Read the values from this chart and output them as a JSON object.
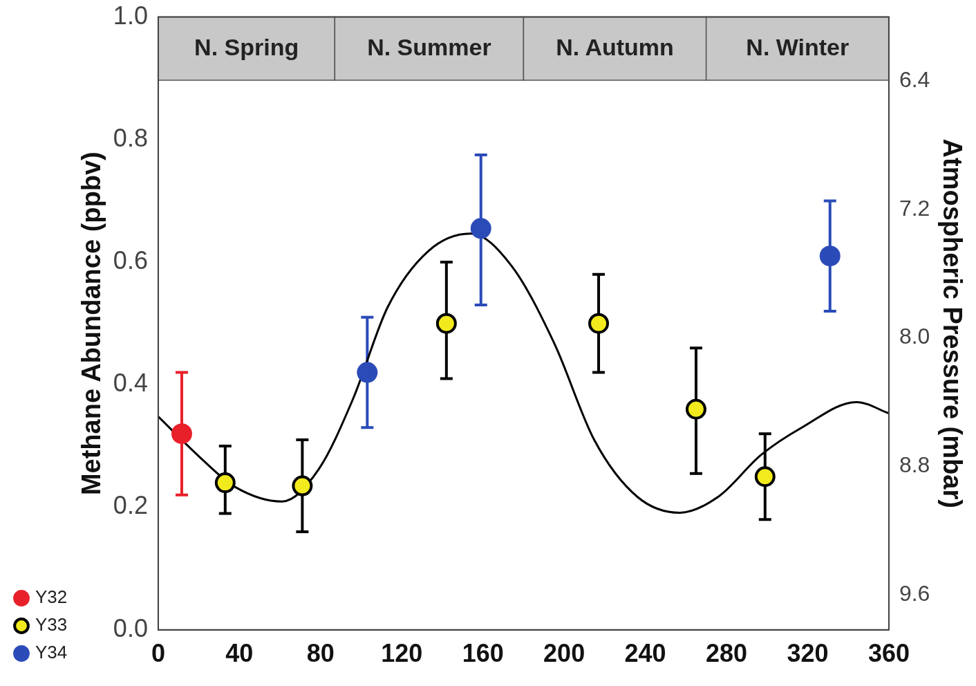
{
  "chart_data": {
    "type": "scatter",
    "ylabel": "Methane Abundance (ppbv)",
    "y2label": "Atmospheric Pressure (mbar)",
    "xlim": [
      0,
      360
    ],
    "xticks": [
      0,
      40,
      80,
      120,
      160,
      200,
      240,
      280,
      320,
      360
    ],
    "ylim": [
      0,
      1.0
    ],
    "yticks": [
      {
        "value": 0,
        "label": "0.0"
      },
      0.2,
      0.4,
      0.6,
      0.8,
      {
        "value": 1,
        "label": "1.0"
      }
    ],
    "y2lim": [
      9.82,
      6.0
    ],
    "y2ticks": [
      6.4,
      7.2,
      {
        "value": 8.0,
        "label": "8.0"
      },
      8.8,
      9.6
    ],
    "grid": false,
    "legend": "bottom left",
    "marker": "circle",
    "bands": [
      {
        "axis": "x",
        "from": 0,
        "to": 87,
        "label": "N. Spring",
        "color": "#c8c8c8"
      },
      {
        "axis": "x",
        "from": 87,
        "to": 180,
        "label": "N. Summer",
        "color": "#c8c8c8"
      },
      {
        "axis": "x",
        "from": 180,
        "to": 270,
        "label": "N. Autumn",
        "color": "#c8c8c8"
      },
      {
        "axis": "x",
        "from": 270,
        "to": 360,
        "label": "N. Winter",
        "color": "#c8c8c8"
      }
    ],
    "series": [
      {
        "name": "Y32",
        "color": "#e8202a",
        "x": [
          11.6
        ],
        "values": [
          0.32
        ],
        "errors": [
          [
            0.22,
            0.42
          ]
        ]
      },
      {
        "name": "Y33",
        "color": "#f2ea1c",
        "x": [
          33,
          71,
          142,
          217,
          265,
          299
        ],
        "values": [
          0.24,
          0.235,
          0.5,
          0.5,
          0.36,
          0.25
        ],
        "errors": [
          [
            0.19,
            0.3
          ],
          [
            0.16,
            0.31
          ],
          [
            0.41,
            0.6
          ],
          [
            0.42,
            0.58
          ],
          [
            0.255,
            0.46
          ],
          [
            0.18,
            0.32
          ]
        ]
      },
      {
        "name": "Y34",
        "color": "#2b4bb8",
        "x": [
          103,
          159,
          331
        ],
        "values": [
          0.42,
          0.655,
          0.61
        ],
        "errors": [
          [
            0.33,
            0.51
          ],
          [
            0.53,
            0.775
          ],
          [
            0.52,
            0.7
          ]
        ]
      },
      {
        "type": "line",
        "axis": "y2",
        "color": "#000000",
        "marker": "none",
        "x": [
          0,
          21,
          38,
          61,
          79,
          96,
          113,
          133,
          154,
          174,
          195,
          215,
          236,
          257,
          276,
          297,
          317,
          344,
          360
        ],
        "values": [
          8.49,
          8.75,
          8.93,
          9.02,
          8.82,
          8.38,
          7.81,
          7.46,
          7.35,
          7.55,
          8.03,
          8.64,
          8.99,
          9.09,
          8.99,
          8.73,
          8.56,
          8.4,
          8.47
        ]
      }
    ]
  }
}
